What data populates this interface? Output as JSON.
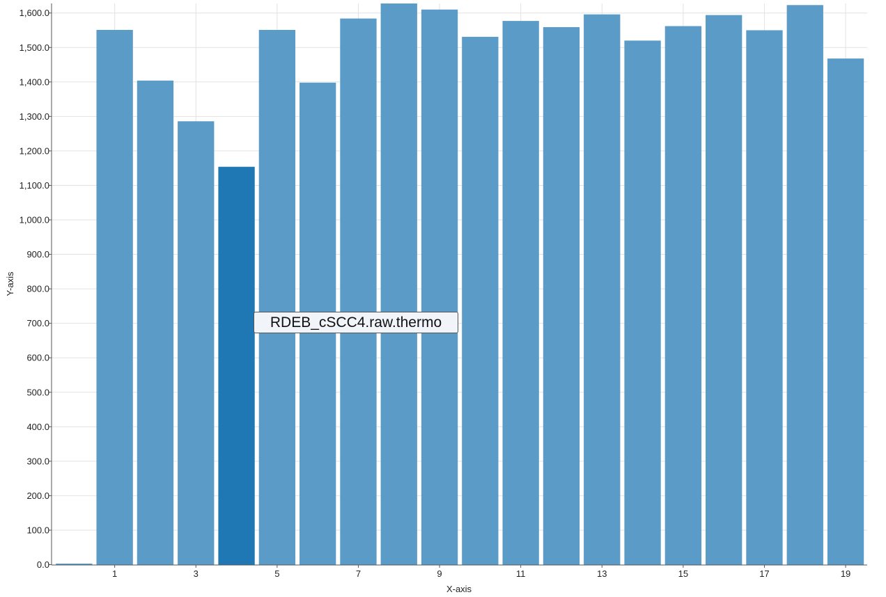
{
  "chart_data": {
    "type": "bar",
    "xlabel": "X-axis",
    "ylabel": "Y-axis",
    "ylim": [
      0,
      1630
    ],
    "yticks": [
      0,
      100,
      200,
      300,
      400,
      500,
      600,
      700,
      800,
      900,
      1000,
      1100,
      1200,
      1300,
      1400,
      1500,
      1600
    ],
    "ytick_labels": [
      "0.0",
      "100.0",
      "200.0",
      "300.0",
      "400.0",
      "500.0",
      "600.0",
      "700.0",
      "800.0",
      "900.0",
      "1,000.0",
      "1,100.0",
      "1,200.0",
      "1,300.0",
      "1,400.0",
      "1,500.0",
      "1,600.0"
    ],
    "x_tick_labels": [
      "1",
      "3",
      "5",
      "7",
      "9",
      "11",
      "13",
      "15",
      "17",
      "19"
    ],
    "x_tick_values": [
      1,
      3,
      5,
      7,
      9,
      11,
      13,
      15,
      17,
      19
    ],
    "x": [
      0,
      1,
      2,
      3,
      4,
      5,
      6,
      7,
      8,
      9,
      10,
      11,
      12,
      13,
      14,
      15,
      16,
      17,
      18,
      19
    ],
    "values": [
      3,
      1551,
      1404,
      1286,
      1154,
      1551,
      1398,
      1584,
      1640,
      1610,
      1531,
      1577,
      1559,
      1596,
      1520,
      1562,
      1594,
      1550,
      1623,
      1468
    ],
    "highlighted_index": 4,
    "grid": true,
    "colors": {
      "bar": "#5a9bc8",
      "highlight": "#1f77b4",
      "grid": "#e2e2e2",
      "axis": "#555555"
    }
  },
  "tooltip": {
    "text": "RDEB_cSCC4.raw.thermo"
  }
}
